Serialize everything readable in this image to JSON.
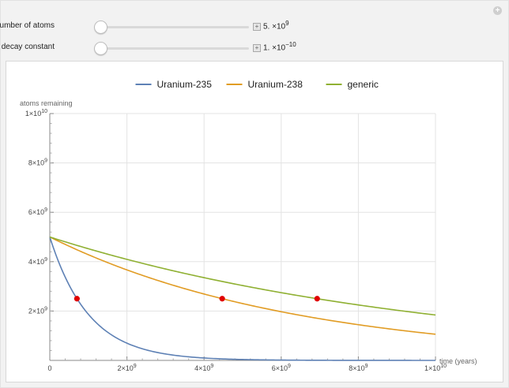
{
  "controls": [
    {
      "label": "initial number of atoms",
      "value_mantissa": "5.",
      "value_exp": "9"
    },
    {
      "label": "decay constant",
      "value_mantissa": "1.",
      "value_exp": "−10"
    }
  ],
  "chart_data": {
    "type": "line",
    "ylabel": "atoms remaining",
    "xlabel": "time (years)",
    "xlim": [
      0,
      10000000000
    ],
    "ylim": [
      0,
      10000000000
    ],
    "x_ticks": [
      {
        "value": 0,
        "mant": "0",
        "exp": ""
      },
      {
        "value": 2000000000,
        "mant": "2×10",
        "exp": "9"
      },
      {
        "value": 4000000000,
        "mant": "4×10",
        "exp": "9"
      },
      {
        "value": 6000000000,
        "mant": "6×10",
        "exp": "9"
      },
      {
        "value": 8000000000,
        "mant": "8×10",
        "exp": "9"
      },
      {
        "value": 10000000000,
        "mant": "1×10",
        "exp": "10"
      }
    ],
    "y_ticks": [
      {
        "value": 2000000000,
        "mant": "2×10",
        "exp": "9"
      },
      {
        "value": 4000000000,
        "mant": "4×10",
        "exp": "9"
      },
      {
        "value": 6000000000,
        "mant": "6×10",
        "exp": "9"
      },
      {
        "value": 8000000000,
        "mant": "8×10",
        "exp": "9"
      },
      {
        "value": 10000000000,
        "mant": "1×10",
        "exp": "10"
      }
    ],
    "grid": true,
    "legend_position": "top",
    "initial_atoms": 5000000000,
    "series": [
      {
        "name": "Uranium-235",
        "color": "#5e81b5",
        "half_life": 704000000
      },
      {
        "name": "Uranium-238",
        "color": "#e19c24",
        "half_life": 4470000000
      },
      {
        "name": "generic",
        "color": "#8fb032",
        "half_life": 6931471806
      }
    ],
    "half_life_points": [
      {
        "x": 704000000,
        "y": 2500000000
      },
      {
        "x": 4470000000,
        "y": 2500000000
      },
      {
        "x": 6931471806,
        "y": 2500000000
      }
    ],
    "marker_color": "#e00000"
  }
}
